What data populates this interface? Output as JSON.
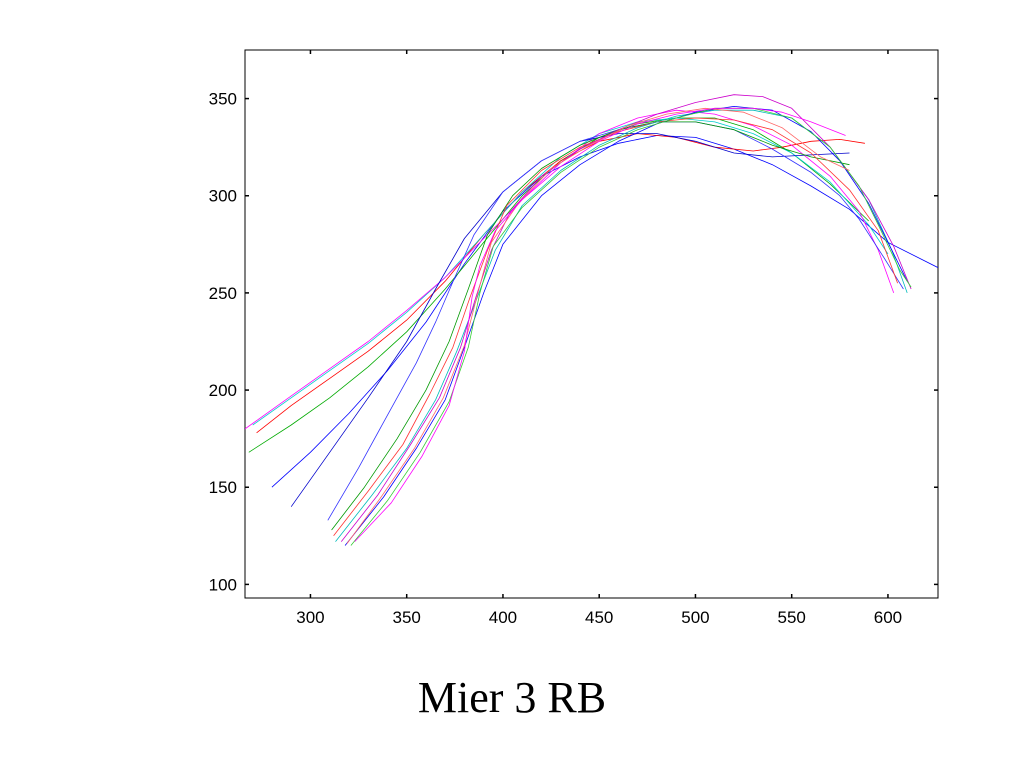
{
  "caption": "Mier 3 RB",
  "chart_data": {
    "type": "line",
    "title": "",
    "xlabel": "",
    "ylabel": "",
    "xlim": [
      266,
      626
    ],
    "ylim": [
      93,
      375
    ],
    "grid": false,
    "legend": "none",
    "xticks": [
      300,
      350,
      400,
      450,
      500,
      550,
      600
    ],
    "yticks": [
      100,
      150,
      200,
      250,
      300,
      350
    ],
    "series": [
      {
        "color": "#0000ff",
        "x": [
          280,
          300,
          320,
          340,
          360,
          380,
          400,
          420,
          440,
          460,
          480,
          500,
          520,
          540,
          560,
          580,
          600,
          626
        ],
        "y": [
          150,
          168,
          188,
          210,
          235,
          265,
          292,
          310,
          320,
          327,
          331,
          330,
          324,
          316,
          305,
          293,
          276,
          263
        ]
      },
      {
        "color": "#00aa00",
        "x": [
          268,
          290,
          310,
          330,
          350,
          370,
          390,
          410,
          430,
          450,
          470,
          490,
          510,
          530,
          550,
          570,
          590
        ],
        "y": [
          168,
          182,
          196,
          212,
          230,
          252,
          276,
          300,
          318,
          330,
          337,
          340,
          340,
          334,
          322,
          306,
          287
        ]
      },
      {
        "color": "#ff0000",
        "x": [
          272,
          290,
          310,
          330,
          350,
          370,
          390,
          410,
          430,
          450,
          470,
          490,
          510,
          530,
          545,
          560,
          575,
          588
        ],
        "y": [
          178,
          192,
          206,
          220,
          236,
          256,
          280,
          302,
          318,
          328,
          332,
          330,
          325,
          323,
          325,
          328,
          329,
          327
        ]
      },
      {
        "color": "#00cccc",
        "x": [
          270,
          290,
          310,
          330,
          350,
          370,
          390,
          410,
          430,
          450,
          470,
          490,
          510,
          530,
          550,
          570,
          590,
          600
        ],
        "y": [
          182,
          196,
          210,
          224,
          240,
          258,
          280,
          302,
          320,
          332,
          338,
          340,
          338,
          332,
          322,
          307,
          285,
          270
        ]
      },
      {
        "color": "#ff00ff",
        "x": [
          266,
          290,
          310,
          330,
          350,
          370,
          390,
          410,
          430,
          450,
          470,
          490,
          510,
          530,
          550,
          570,
          585,
          595,
          603
        ],
        "y": [
          180,
          197,
          211,
          225,
          241,
          258,
          278,
          298,
          317,
          332,
          340,
          344,
          342,
          336,
          326,
          310,
          292,
          272,
          250
        ]
      },
      {
        "color": "#0000cc",
        "x": [
          290,
          310,
          330,
          350,
          365,
          380,
          400,
          420,
          440,
          460,
          480,
          500,
          520,
          540,
          560,
          580
        ],
        "y": [
          140,
          168,
          196,
          225,
          252,
          278,
          302,
          318,
          328,
          332,
          332,
          328,
          322,
          320,
          321,
          322
        ]
      },
      {
        "color": "#3333ff",
        "x": [
          309,
          325,
          340,
          355,
          365,
          375,
          385,
          400,
          420,
          440,
          460,
          480,
          500,
          520,
          540,
          560,
          575,
          585,
          598,
          608
        ],
        "y": [
          133,
          160,
          187,
          214,
          235,
          258,
          280,
          302,
          318,
          328,
          334,
          338,
          338,
          334,
          324,
          312,
          300,
          288,
          268,
          252
        ]
      },
      {
        "color": "#009900",
        "x": [
          311,
          328,
          345,
          360,
          372,
          382,
          392,
          405,
          420,
          440,
          460,
          480,
          500,
          520,
          540,
          560,
          580
        ],
        "y": [
          128,
          150,
          175,
          200,
          225,
          252,
          280,
          300,
          314,
          326,
          334,
          338,
          338,
          334,
          326,
          320,
          316
        ]
      },
      {
        "color": "#ff3333",
        "x": [
          312,
          330,
          348,
          362,
          374,
          383,
          392,
          402,
          420,
          440,
          460,
          480,
          500,
          520,
          540,
          560,
          580,
          595,
          605
        ],
        "y": [
          125,
          148,
          172,
          198,
          222,
          248,
          272,
          295,
          313,
          325,
          333,
          338,
          340,
          339,
          334,
          322,
          303,
          282,
          255
        ]
      },
      {
        "color": "#00bbbb",
        "x": [
          313,
          332,
          350,
          365,
          376,
          386,
          396,
          410,
          430,
          450,
          470,
          490,
          510,
          530,
          550,
          570,
          590,
          602,
          610
        ],
        "y": [
          122,
          146,
          170,
          195,
          220,
          246,
          272,
          295,
          313,
          326,
          335,
          341,
          344,
          344,
          340,
          325,
          298,
          272,
          250
        ]
      },
      {
        "color": "#cc00cc",
        "x": [
          316,
          335,
          352,
          367,
          378,
          386,
          394,
          404,
          420,
          440,
          460,
          480,
          500,
          520,
          535,
          550,
          570,
          590,
          603,
          612
        ],
        "y": [
          122,
          146,
          172,
          196,
          222,
          248,
          272,
          292,
          310,
          324,
          334,
          342,
          348,
          352,
          351,
          345,
          325,
          298,
          274,
          252
        ]
      },
      {
        "color": "#0000ff",
        "x": [
          318,
          338,
          355,
          370,
          380,
          390,
          400,
          420,
          440,
          460,
          480,
          500,
          520,
          540,
          560,
          575,
          590,
          600,
          610
        ],
        "y": [
          120,
          145,
          170,
          195,
          222,
          250,
          275,
          300,
          316,
          328,
          337,
          343,
          346,
          344,
          333,
          318,
          296,
          276,
          256
        ]
      },
      {
        "color": "#33cc33",
        "x": [
          321,
          340,
          357,
          372,
          382,
          388,
          395,
          410,
          430,
          450,
          470,
          490,
          510,
          530,
          550,
          570,
          585,
          595,
          606,
          612
        ],
        "y": [
          120,
          143,
          168,
          194,
          222,
          250,
          274,
          294,
          312,
          325,
          334,
          340,
          345,
          345,
          340,
          325,
          305,
          285,
          262,
          253
        ]
      },
      {
        "color": "#ff6666",
        "x": [
          319,
          336,
          354,
          369,
          380,
          387,
          394,
          408,
          425,
          445,
          465,
          485,
          505,
          525,
          545,
          565,
          580
        ],
        "y": [
          121,
          144,
          170,
          196,
          223,
          250,
          276,
          296,
          314,
          326,
          336,
          342,
          345,
          343,
          335,
          320,
          313
        ]
      },
      {
        "color": "#ff00ff",
        "x": [
          323,
          342,
          358,
          372,
          380,
          384,
          388,
          396,
          410,
          430,
          450,
          470,
          490,
          510,
          530,
          545,
          560,
          578
        ],
        "y": [
          122,
          142,
          166,
          192,
          220,
          248,
          264,
          282,
          298,
          315,
          328,
          337,
          342,
          345,
          345,
          343,
          338,
          331
        ]
      }
    ]
  }
}
